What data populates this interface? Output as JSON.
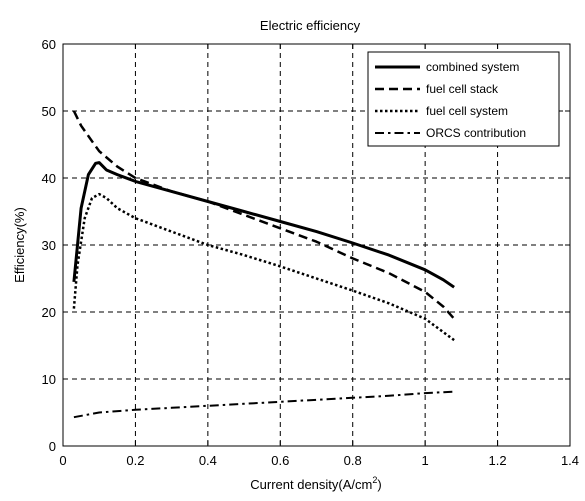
{
  "chart_data": {
    "type": "line",
    "title": "Electric efficiency",
    "xlabel": "Current density(A/cm",
    "xlabel_sup": "2",
    "xlabel_close": ")",
    "ylabel": "Efficiency(%)",
    "xlim": [
      0,
      1.4
    ],
    "ylim": [
      0,
      60
    ],
    "xticks": [
      0,
      0.2,
      0.4,
      0.6,
      0.8,
      1,
      1.2,
      1.4
    ],
    "xtick_labels": [
      "0",
      "0.2",
      "0.4",
      "0.6",
      "0.8",
      "1",
      "1.2",
      "1.4"
    ],
    "yticks": [
      0,
      10,
      20,
      30,
      40,
      50,
      60
    ],
    "ytick_labels": [
      "0",
      "10",
      "20",
      "30",
      "40",
      "50",
      "60"
    ],
    "grid": true,
    "legend_position": "top-right",
    "series": [
      {
        "name": "combined system",
        "style": "solid",
        "x": [
          0.03,
          0.05,
          0.07,
          0.09,
          0.1,
          0.12,
          0.15,
          0.2,
          0.3,
          0.4,
          0.5,
          0.6,
          0.7,
          0.8,
          0.9,
          1.0,
          1.05,
          1.08
        ],
        "y": [
          24.5,
          35.5,
          40.5,
          42.2,
          42.3,
          41.2,
          40.5,
          39.5,
          38.0,
          36.5,
          35.0,
          33.5,
          32.0,
          30.3,
          28.5,
          26.3,
          24.8,
          23.7
        ]
      },
      {
        "name": "fuel cell stack",
        "style": "dashed",
        "x": [
          0.03,
          0.05,
          0.08,
          0.1,
          0.15,
          0.2,
          0.3,
          0.4,
          0.5,
          0.6,
          0.7,
          0.8,
          0.9,
          1.0,
          1.05,
          1.08
        ],
        "y": [
          50.0,
          47.8,
          45.5,
          44.0,
          41.7,
          40.0,
          38.0,
          36.5,
          34.5,
          32.5,
          30.5,
          28.0,
          25.8,
          23.0,
          20.8,
          19.0
        ]
      },
      {
        "name": "fuel cell system",
        "style": "dotted",
        "x": [
          0.03,
          0.04,
          0.06,
          0.08,
          0.1,
          0.12,
          0.15,
          0.2,
          0.3,
          0.4,
          0.5,
          0.6,
          0.7,
          0.8,
          0.9,
          1.0,
          1.05,
          1.08
        ],
        "y": [
          20.5,
          27.0,
          34.0,
          37.0,
          37.6,
          37.0,
          35.5,
          34.0,
          32.0,
          30.0,
          28.5,
          26.8,
          25.0,
          23.2,
          21.3,
          19.0,
          17.0,
          15.8
        ]
      },
      {
        "name": "ORCS contribution",
        "style": "dashdot",
        "x": [
          0.03,
          0.1,
          0.2,
          0.3,
          0.4,
          0.5,
          0.6,
          0.7,
          0.8,
          0.9,
          1.0,
          1.08
        ],
        "y": [
          4.3,
          5.0,
          5.4,
          5.7,
          6.0,
          6.3,
          6.6,
          6.9,
          7.2,
          7.5,
          7.9,
          8.1
        ]
      }
    ]
  }
}
